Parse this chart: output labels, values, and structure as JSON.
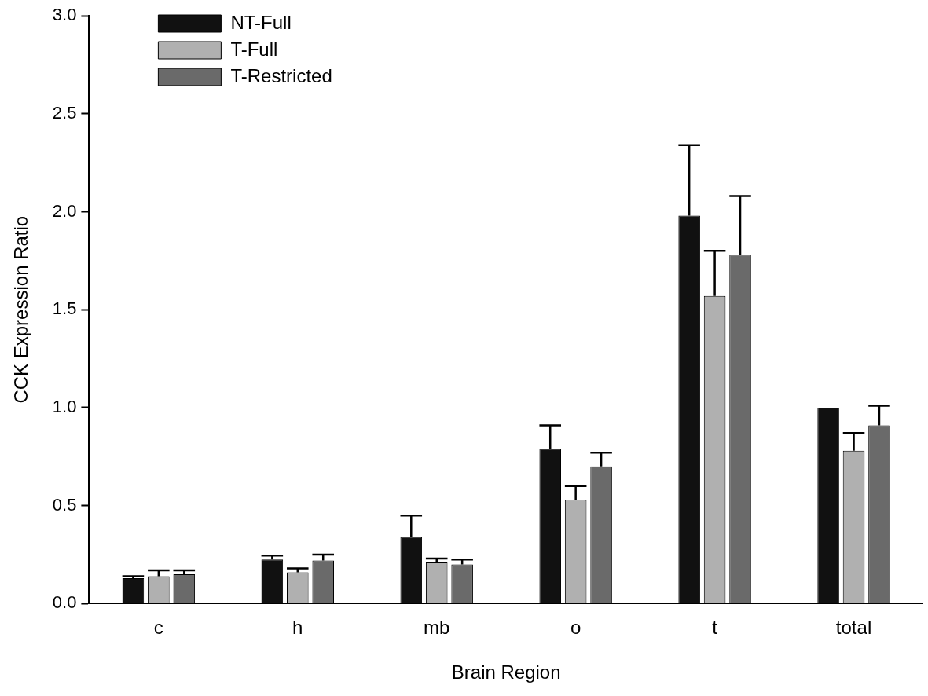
{
  "chart_data": {
    "type": "bar",
    "xlabel": "Brain Region",
    "ylabel": "CCK Expression Ratio",
    "categories": [
      "c",
      "h",
      "mb",
      "o",
      "t",
      "total"
    ],
    "series": [
      {
        "name": "NT-Full",
        "color": "#111111",
        "values": [
          0.13,
          0.225,
          0.34,
          0.79,
          1.98,
          1.0
        ],
        "errors": [
          [
            0.13,
            0.14
          ],
          [
            0.225,
            0.245
          ],
          [
            0.34,
            0.45
          ],
          [
            0.79,
            0.91
          ],
          [
            1.98,
            2.34
          ],
          null
        ]
      },
      {
        "name": "T-Full",
        "color": "#b0b0b0",
        "values": [
          0.14,
          0.16,
          0.21,
          0.53,
          1.57,
          0.78
        ],
        "errors": [
          [
            0.14,
            0.17
          ],
          [
            0.16,
            0.18
          ],
          [
            0.21,
            0.23
          ],
          [
            0.53,
            0.6
          ],
          [
            1.57,
            1.8
          ],
          [
            0.78,
            0.87
          ]
        ]
      },
      {
        "name": "T-Restricted",
        "color": "#6a6a6a",
        "values": [
          0.15,
          0.22,
          0.2,
          0.7,
          1.78,
          0.91
        ],
        "errors": [
          [
            0.15,
            0.17
          ],
          [
            0.22,
            0.25
          ],
          [
            0.2,
            0.225
          ],
          [
            0.7,
            0.77
          ],
          [
            1.78,
            2.08
          ],
          [
            0.91,
            1.01
          ]
        ]
      }
    ],
    "ylim": [
      0,
      3.0
    ],
    "yticks": [
      {
        "value": 0,
        "label": "0.0"
      },
      {
        "value": 0.5,
        "label": "0.5"
      },
      {
        "value": 1,
        "label": "1.0"
      },
      {
        "value": 1.5,
        "label": "1.5"
      },
      {
        "value": 2,
        "label": "2.0"
      },
      {
        "value": 2.5,
        "label": "2.5"
      },
      {
        "value": 3,
        "label": "3.0"
      }
    ],
    "grid": false,
    "legend": "top left"
  }
}
